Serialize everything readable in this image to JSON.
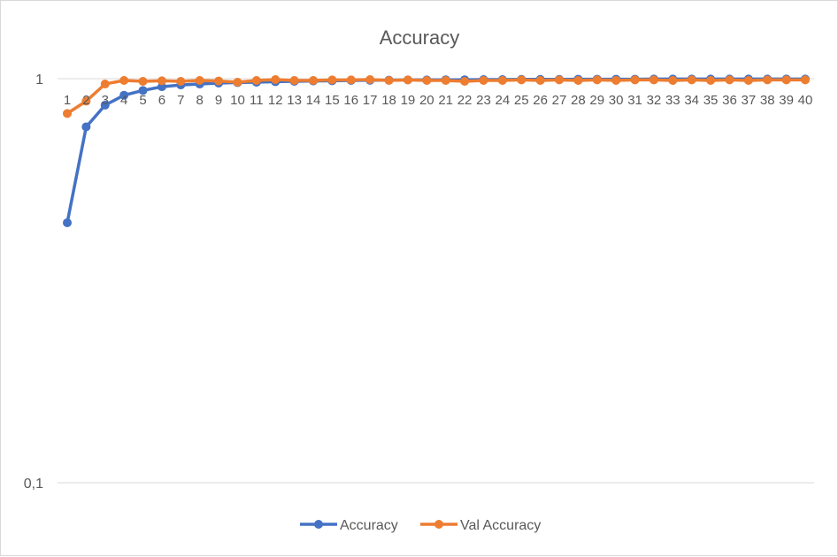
{
  "chart_data": {
    "type": "line",
    "title": "Accuracy",
    "xlabel": "",
    "ylabel": "",
    "y_scale": "log",
    "ylim": [
      0.1,
      1
    ],
    "y_tick_labels": [
      "1",
      "0,1"
    ],
    "y_tick_values": [
      1,
      0.1
    ],
    "grid": true,
    "legend_position": "bottom",
    "categories": [
      "1",
      "2",
      "3",
      "4",
      "5",
      "6",
      "7",
      "8",
      "9",
      "10",
      "11",
      "12",
      "13",
      "14",
      "15",
      "16",
      "17",
      "18",
      "19",
      "20",
      "21",
      "22",
      "23",
      "24",
      "25",
      "26",
      "27",
      "28",
      "29",
      "30",
      "31",
      "32",
      "33",
      "34",
      "35",
      "36",
      "37",
      "38",
      "39",
      "40"
    ],
    "series": [
      {
        "name": "Accuracy",
        "color": "#4472c4",
        "values": [
          0.44,
          0.76,
          0.86,
          0.91,
          0.935,
          0.955,
          0.965,
          0.97,
          0.975,
          0.978,
          0.98,
          0.983,
          0.985,
          0.987,
          0.988,
          0.99,
          0.991,
          0.992,
          0.993,
          0.993,
          0.994,
          0.994,
          0.995,
          0.995,
          0.996,
          0.996,
          0.996,
          0.997,
          0.997,
          0.997,
          0.997,
          0.998,
          0.998,
          0.998,
          0.998,
          0.998,
          0.998,
          0.998,
          0.998,
          0.998
        ]
      },
      {
        "name": "Val Accuracy",
        "color": "#ed7d31",
        "values": [
          0.82,
          0.88,
          0.97,
          0.99,
          0.985,
          0.988,
          0.985,
          0.99,
          0.987,
          0.98,
          0.99,
          0.995,
          0.99,
          0.99,
          0.993,
          0.993,
          0.995,
          0.99,
          0.993,
          0.99,
          0.99,
          0.985,
          0.99,
          0.99,
          0.993,
          0.99,
          0.993,
          0.99,
          0.993,
          0.99,
          0.993,
          0.993,
          0.99,
          0.993,
          0.99,
          0.993,
          0.99,
          0.993,
          0.993,
          0.993
        ]
      }
    ]
  }
}
